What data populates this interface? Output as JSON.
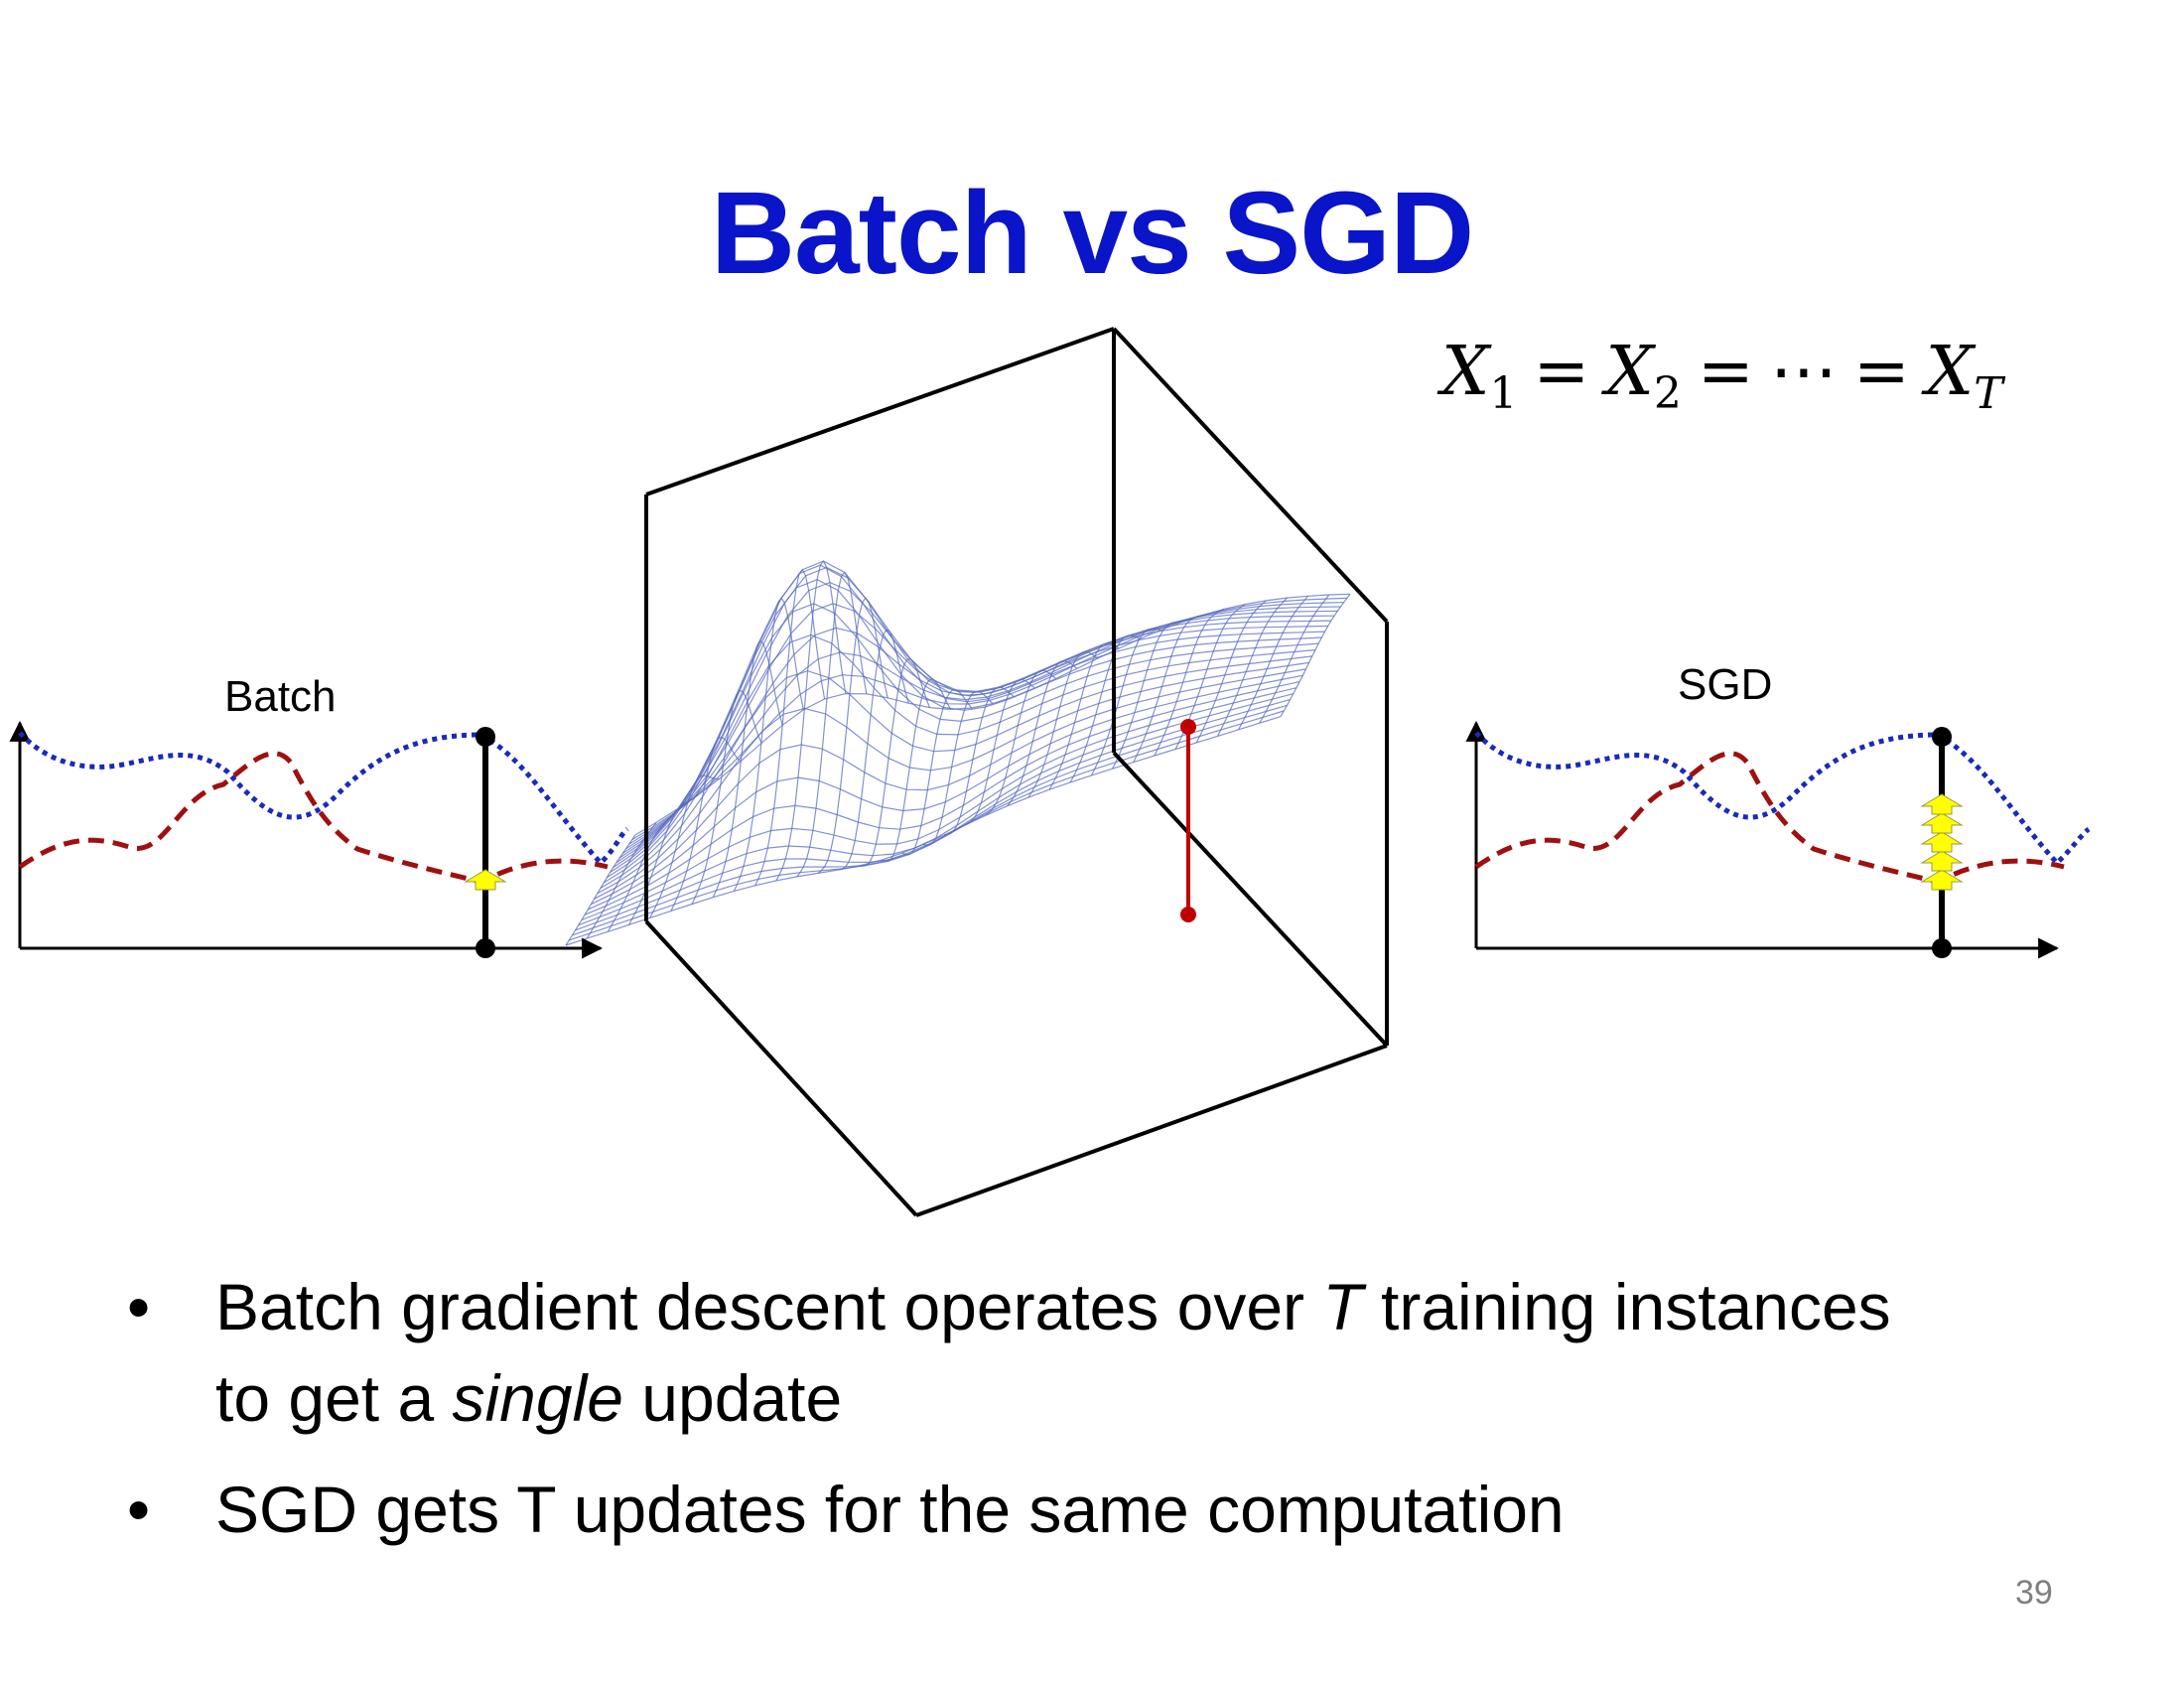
{
  "slide": {
    "title": "Batch vs SGD",
    "page_number": "39",
    "colors": {
      "title": "#0a14c8",
      "blue_curve": "#1a2ab8",
      "red_curve": "#a01010",
      "marker": "#ffff00",
      "surface_mesh": "#5a6cc0"
    }
  },
  "equation": {
    "terms": [
      {
        "symbol": "X",
        "sub": "1"
      },
      {
        "symbol": "X",
        "sub": "2"
      },
      {
        "symbol": "⋯",
        "sub": ""
      },
      {
        "symbol": "X",
        "sub": "T"
      }
    ],
    "operator": "="
  },
  "plots": {
    "batch_label": "Batch",
    "sgd_label": "SGD",
    "batch_update_count": 1,
    "sgd_update_count": 5
  },
  "bullets": [
    {
      "segments": [
        {
          "text": "Batch gradient descent operates over ",
          "italic": false
        },
        {
          "text": "T",
          "italic": true
        },
        {
          "text": " training instances",
          "italic": false
        },
        {
          "text": "\n",
          "italic": false
        },
        {
          "text": "to get a ",
          "italic": false
        },
        {
          "text": "single",
          "italic": true
        },
        {
          "text": " update",
          "italic": false
        }
      ]
    },
    {
      "segments": [
        {
          "text": "SGD gets T updates for the same computation",
          "italic": false
        }
      ]
    }
  ],
  "bullet_glyph": "•"
}
